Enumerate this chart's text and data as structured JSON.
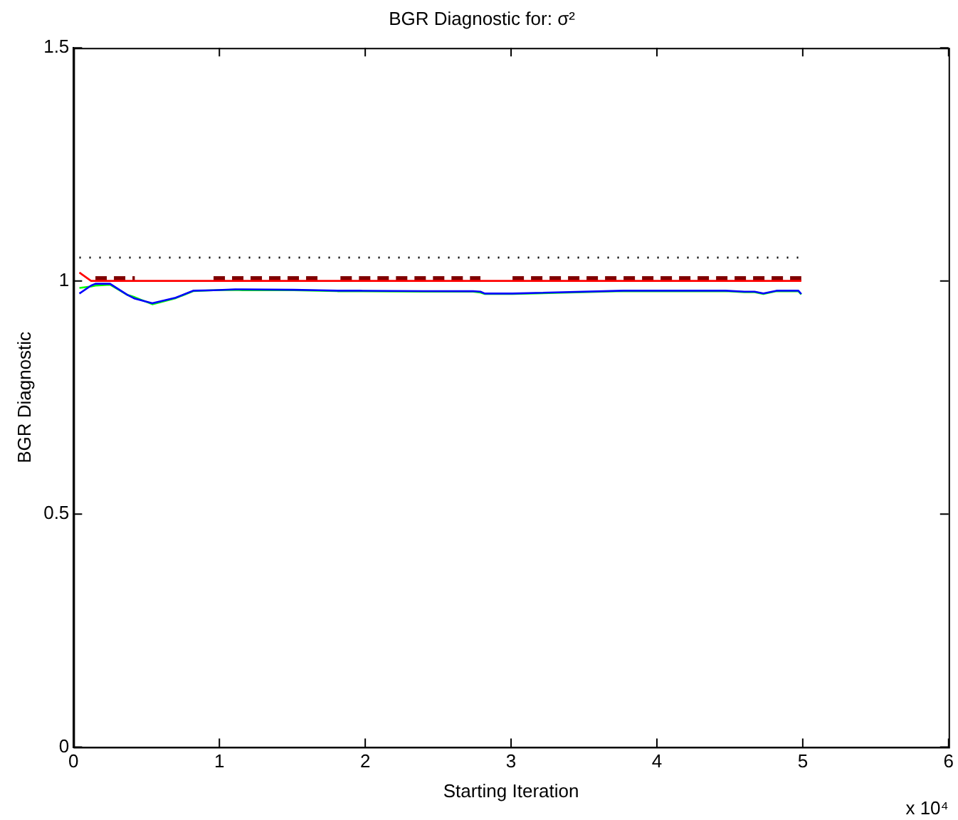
{
  "chart_data": {
    "type": "line",
    "title": "BGR Diagnostic for: σ²",
    "xlabel": "Starting Iteration",
    "ylabel": "BGR Diagnostic",
    "x": [
      0.04,
      0.12,
      0.15,
      0.25,
      0.37,
      0.42,
      0.54,
      0.7,
      0.82,
      0.96,
      1.11,
      1.16,
      1.51,
      1.68,
      1.81,
      1.83,
      1.96,
      2.4,
      2.74,
      2.79,
      2.82,
      3.01,
      3.77,
      3.9,
      4.02,
      4.07,
      4.22,
      4.3,
      4.37,
      4.47,
      4.6,
      4.67,
      4.73,
      4.82,
      4.97,
      4.99
    ],
    "series": [
      {
        "color": "#000000",
        "line_style": "dotted",
        "x": [
          0.04,
          4.99
        ],
        "values": [
          1.05,
          1.05
        ]
      },
      {
        "color": "#00ff00",
        "values": [
          0.985,
          0.988,
          0.99,
          0.992,
          0.97,
          0.965,
          0.95,
          0.963,
          0.978,
          0.98,
          0.981,
          0.98,
          0.98,
          0.979,
          0.978,
          0.978,
          0.978,
          0.977,
          0.977,
          0.975,
          0.972,
          0.972,
          0.978,
          0.978,
          0.978,
          0.978,
          0.978,
          0.978,
          0.978,
          0.978,
          0.976,
          0.976,
          0.972,
          0.978,
          0.978,
          0.971
        ]
      },
      {
        "color": "#0000ff",
        "values": [
          0.973,
          0.99,
          0.994,
          0.994,
          0.97,
          0.962,
          0.952,
          0.964,
          0.979,
          0.98,
          0.982,
          0.982,
          0.981,
          0.98,
          0.979,
          0.979,
          0.979,
          0.978,
          0.978,
          0.977,
          0.973,
          0.973,
          0.979,
          0.979,
          0.979,
          0.979,
          0.979,
          0.979,
          0.979,
          0.979,
          0.977,
          0.977,
          0.973,
          0.979,
          0.979,
          0.972
        ]
      },
      {
        "color": "#800000",
        "line_style": "dashed",
        "values": [
          null,
          null,
          1.005,
          1.005,
          1.005,
          1.005,
          null,
          null,
          null,
          1.005,
          1.005,
          1.005,
          1.005,
          1.005,
          null,
          1.005,
          1.005,
          1.005,
          1.005,
          1.005,
          null,
          1.005,
          1.005,
          1.005,
          1.005,
          1.005,
          1.005,
          1.005,
          1.005,
          1.005,
          1.005,
          1.005,
          1.005,
          1.005,
          1.005,
          1.005
        ]
      },
      {
        "color": "#ff0000",
        "values": [
          1.018,
          1.0,
          1.0,
          1.0,
          1.0,
          1.0,
          1.0,
          1.0,
          1.0,
          1.0,
          1.0,
          1.0,
          1.0,
          1.0,
          1.0,
          1.0,
          1.0,
          1.0,
          1.0,
          1.0,
          1.0,
          1.0,
          1.0,
          1.0,
          1.0,
          1.0,
          1.0,
          1.0,
          1.0,
          1.0,
          1.0,
          1.0,
          1.0,
          1.0,
          1.0,
          1.0
        ]
      }
    ],
    "xlim": [
      0,
      6
    ],
    "xticks": [
      0,
      1,
      2,
      3,
      4,
      5,
      6
    ],
    "ylim": [
      0,
      1.5
    ],
    "yticks": [
      0,
      0.5,
      1,
      1.5
    ],
    "annotations": [
      "x 10⁴"
    ],
    "grid": false,
    "legend": false,
    "marker": "none"
  }
}
